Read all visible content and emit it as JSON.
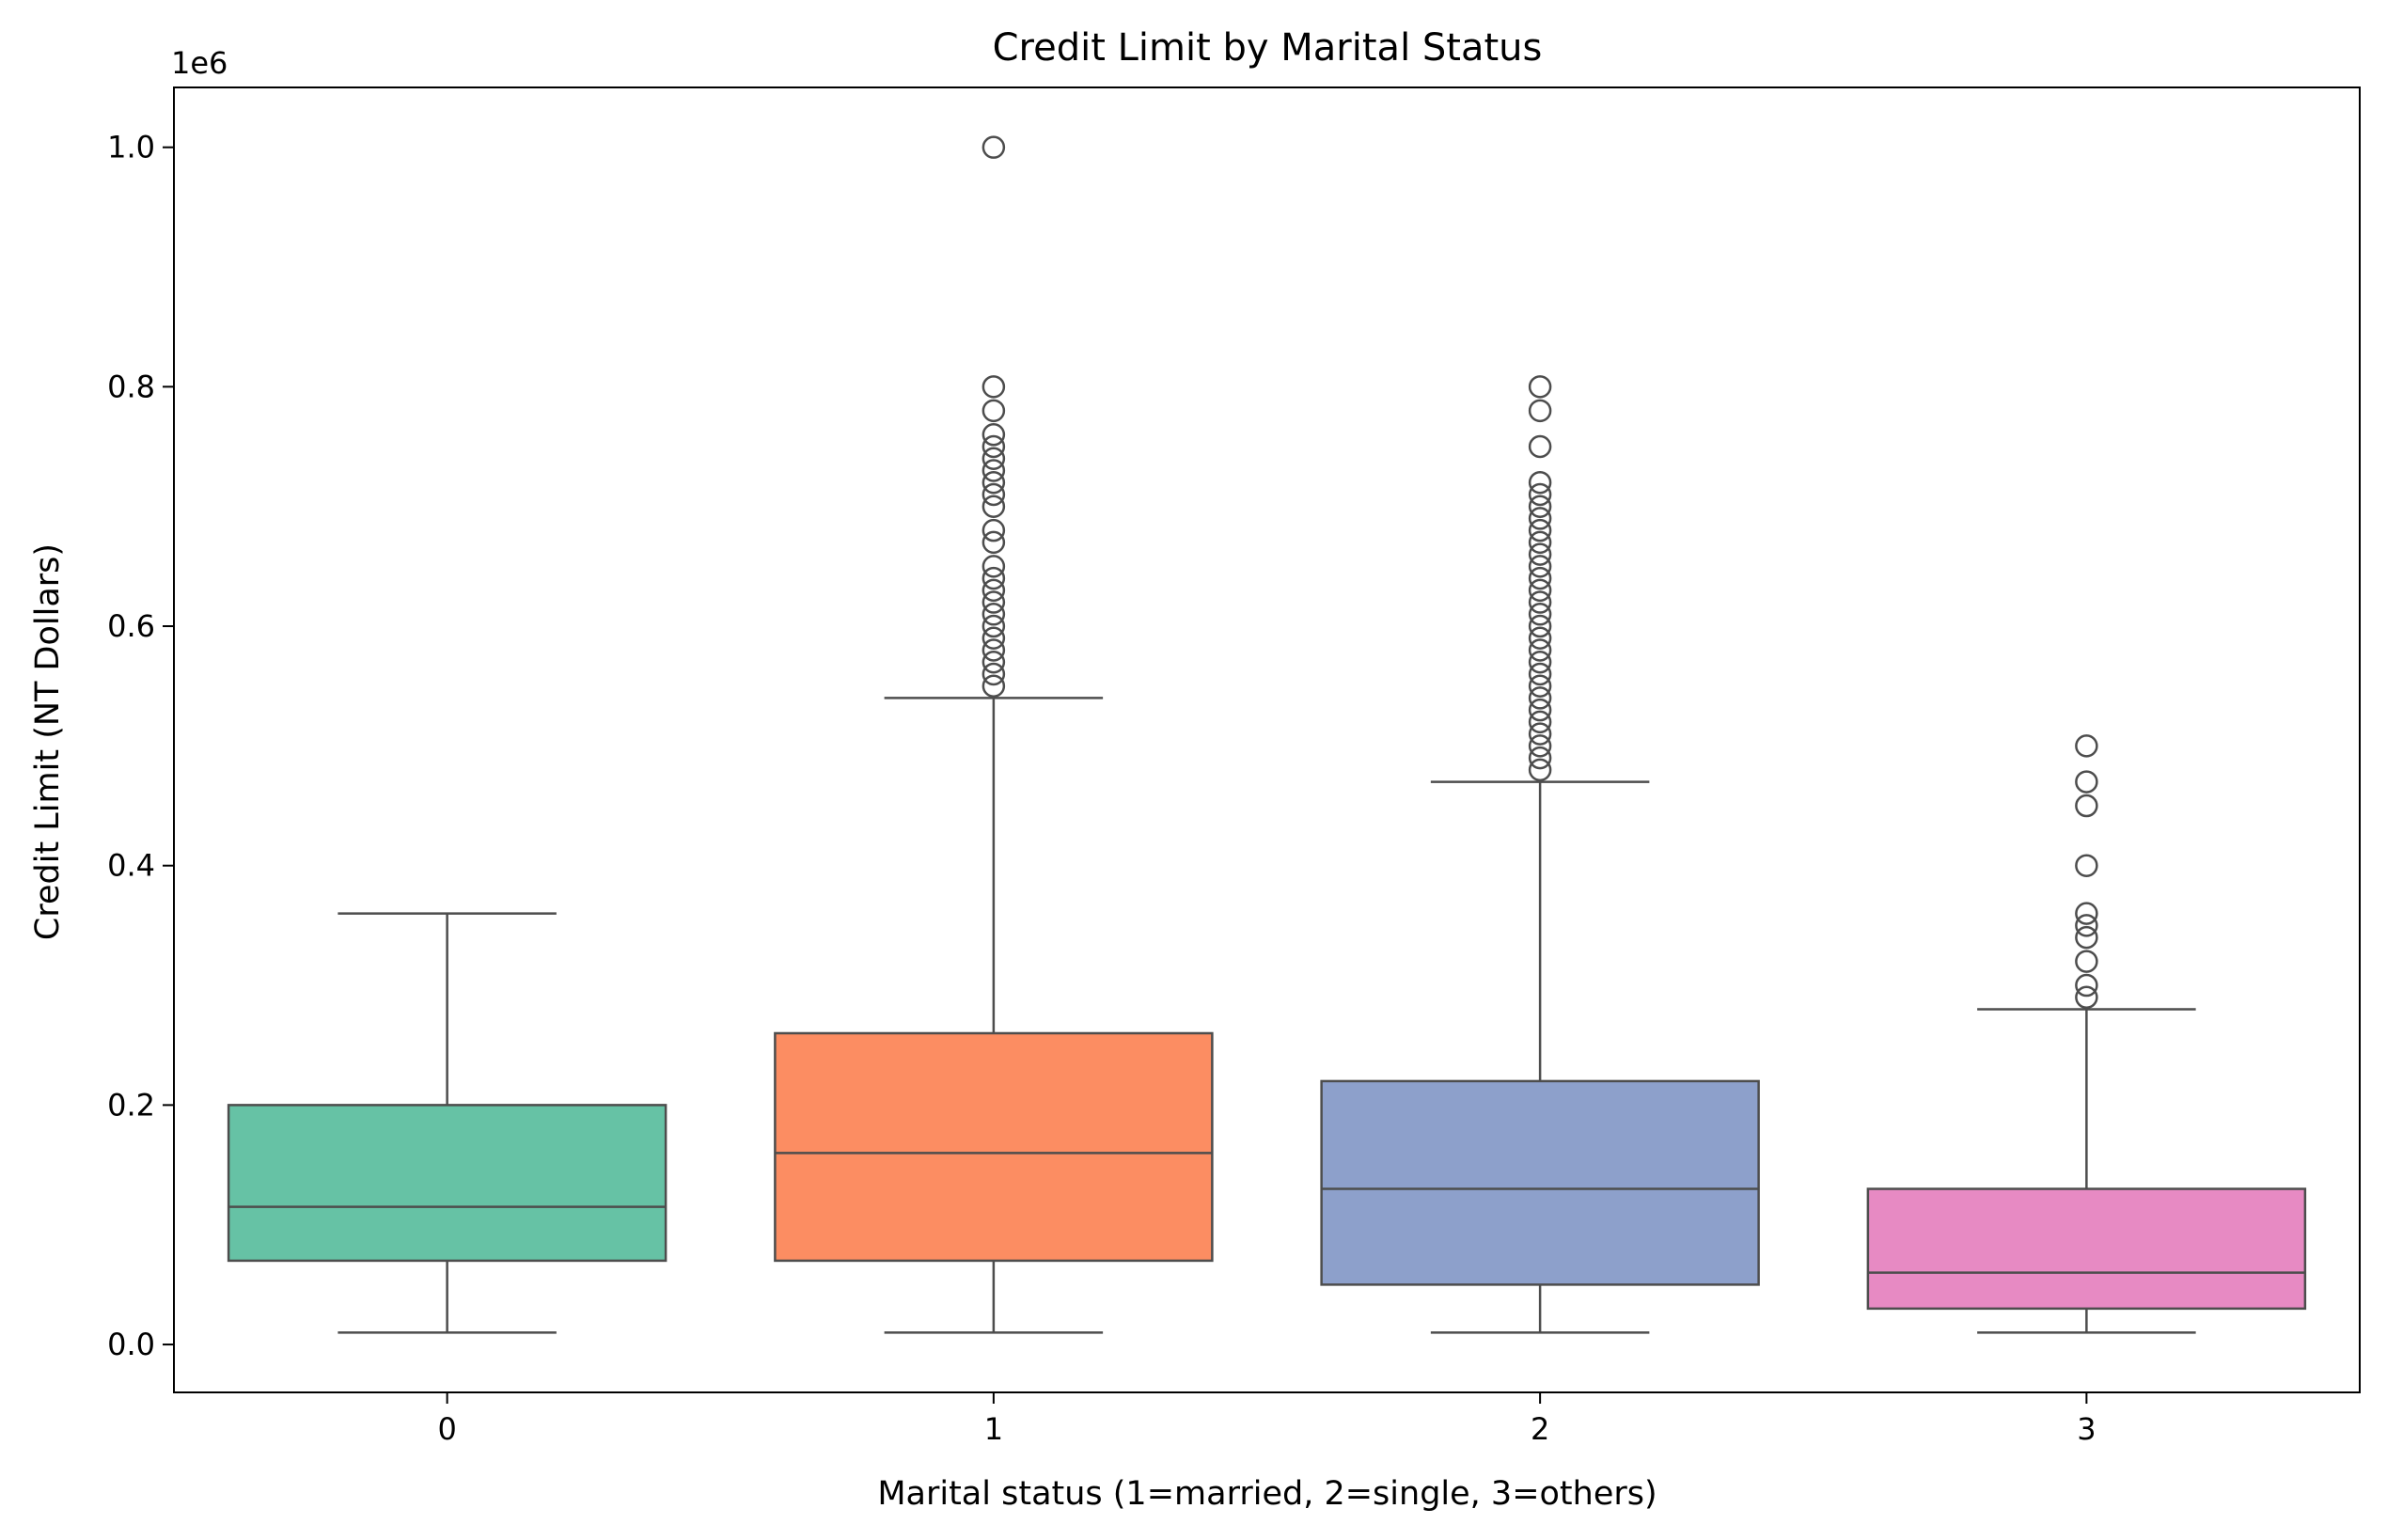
{
  "chart_data": {
    "type": "box",
    "title": "Credit Limit by Marital Status",
    "xlabel": "Marital status (1=married, 2=single, 3=others)",
    "ylabel": "Credit Limit (NT Dollars)",
    "y_offset_label": "1e6",
    "ylim": [
      -0.04,
      1.05
    ],
    "yticks": [
      0.0,
      0.2,
      0.4,
      0.6,
      0.8,
      1.0
    ],
    "ytick_labels": [
      "0.0",
      "0.2",
      "0.4",
      "0.6",
      "0.8",
      "1.0"
    ],
    "categories": [
      "0",
      "1",
      "2",
      "3"
    ],
    "boxes": [
      {
        "category": "0",
        "color": "#66c2a5",
        "whisker_low": 0.01,
        "q1": 0.07,
        "median": 0.115,
        "q3": 0.2,
        "whisker_high": 0.36,
        "outliers": []
      },
      {
        "category": "1",
        "color": "#fc8d62",
        "whisker_low": 0.01,
        "q1": 0.07,
        "median": 0.16,
        "q3": 0.26,
        "whisker_high": 0.54,
        "outliers": [
          0.55,
          0.56,
          0.57,
          0.58,
          0.59,
          0.6,
          0.61,
          0.62,
          0.63,
          0.64,
          0.65,
          0.67,
          0.68,
          0.7,
          0.71,
          0.72,
          0.73,
          0.74,
          0.75,
          0.76,
          0.78,
          0.8,
          1.0
        ]
      },
      {
        "category": "2",
        "color": "#8da0cb",
        "whisker_low": 0.01,
        "q1": 0.05,
        "median": 0.13,
        "q3": 0.22,
        "whisker_high": 0.47,
        "outliers": [
          0.48,
          0.49,
          0.5,
          0.51,
          0.52,
          0.53,
          0.54,
          0.55,
          0.56,
          0.57,
          0.58,
          0.59,
          0.6,
          0.61,
          0.62,
          0.63,
          0.64,
          0.65,
          0.66,
          0.67,
          0.68,
          0.69,
          0.7,
          0.71,
          0.72,
          0.75,
          0.78,
          0.8
        ]
      },
      {
        "category": "3",
        "color": "#e78ac3",
        "whisker_low": 0.01,
        "q1": 0.03,
        "median": 0.06,
        "q3": 0.13,
        "whisker_high": 0.28,
        "outliers": [
          0.29,
          0.3,
          0.32,
          0.34,
          0.35,
          0.36,
          0.4,
          0.45,
          0.47,
          0.5
        ]
      }
    ],
    "grid": false,
    "line_color": "#4d4d4d"
  }
}
